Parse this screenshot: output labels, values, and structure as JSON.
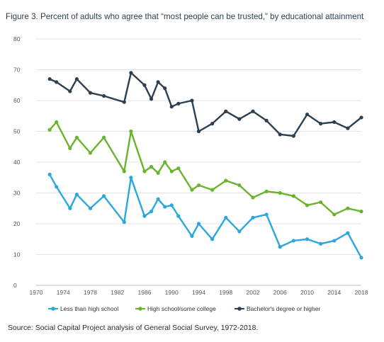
{
  "title": "Figure 3. Percent of adults who agree that “most people can be trusted,” by educational attainment",
  "source": "Source: Social Capital Project analysis of General Social Survey, 1972-2018.",
  "chart_data": {
    "type": "line",
    "title": "Figure 3. Percent of adults who agree that “most people can be trusted,” by educational attainment",
    "xlabel": "",
    "ylabel": "",
    "xlim": [
      1970,
      2018
    ],
    "ylim": [
      0,
      80
    ],
    "xticks": [
      1970,
      1974,
      1978,
      1982,
      1986,
      1990,
      1994,
      1998,
      2002,
      2006,
      2010,
      2014,
      2018
    ],
    "yticks": [
      0,
      10,
      20,
      30,
      40,
      50,
      60,
      70,
      80
    ],
    "grid": "horizontal",
    "legend": "bottom",
    "series": [
      {
        "name": "Less than high school",
        "color": "#2aa7df",
        "x": [
          1972,
          1973,
          1975,
          1976,
          1978,
          1980,
          1983,
          1984,
          1986,
          1987,
          1988,
          1989,
          1990,
          1991,
          1993,
          1994,
          1996,
          1998,
          2000,
          2002,
          2004,
          2006,
          2008,
          2010,
          2012,
          2014,
          2016,
          2018
        ],
        "y": [
          36,
          32,
          25,
          29.5,
          25,
          29,
          20.5,
          35,
          22.5,
          24,
          28,
          25.5,
          26,
          22.5,
          16,
          20,
          15,
          22,
          17.5,
          22,
          23,
          12.5,
          14.5,
          15,
          13.5,
          14.5,
          17,
          9
        ]
      },
      {
        "name": "High school/some college",
        "color": "#6ab42d",
        "x": [
          1972,
          1973,
          1975,
          1976,
          1978,
          1980,
          1983,
          1984,
          1986,
          1987,
          1988,
          1989,
          1990,
          1991,
          1993,
          1994,
          1996,
          1998,
          2000,
          2002,
          2004,
          2006,
          2008,
          2010,
          2012,
          2014,
          2016,
          2018
        ],
        "y": [
          50.5,
          53,
          44.5,
          48,
          43,
          48,
          37,
          50,
          37,
          38.5,
          36.5,
          40,
          37,
          38,
          31,
          32.5,
          31,
          34,
          32.5,
          28.5,
          30.5,
          30,
          29,
          26,
          27,
          23,
          25,
          24
        ]
      },
      {
        "name": "Bachelor's degree or higher",
        "color": "#2e3f4f",
        "x": [
          1972,
          1973,
          1975,
          1976,
          1978,
          1980,
          1983,
          1984,
          1986,
          1987,
          1988,
          1989,
          1990,
          1991,
          1993,
          1994,
          1996,
          1998,
          2000,
          2002,
          2004,
          2006,
          2008,
          2010,
          2012,
          2014,
          2016,
          2018
        ],
        "y": [
          67,
          66,
          63,
          67,
          62.5,
          61.5,
          59.5,
          69,
          65,
          60.5,
          66,
          64,
          58,
          59,
          60,
          50,
          52.5,
          56.5,
          54,
          56.5,
          53.5,
          49,
          48.5,
          55.5,
          52.5,
          53,
          51,
          54.5
        ]
      }
    ]
  }
}
